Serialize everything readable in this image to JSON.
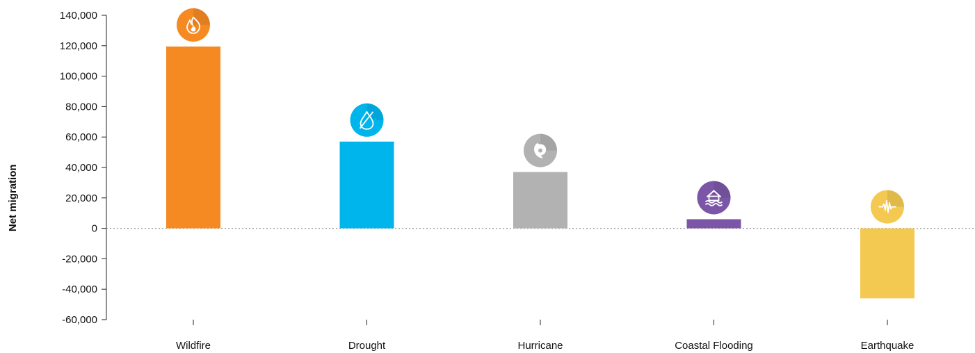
{
  "chart_data": {
    "type": "bar",
    "title": "",
    "xlabel": "",
    "ylabel": "Net migration",
    "ylim": [
      -60000,
      140000
    ],
    "yticks": [
      140000,
      120000,
      100000,
      80000,
      60000,
      40000,
      20000,
      0,
      -20000,
      -40000,
      -60000
    ],
    "ytick_labels": [
      "140,000",
      "120,000",
      "100,000",
      "80,000",
      "60,000",
      "40,000",
      "20,000",
      "0",
      "-20,000",
      "-40,000",
      "-60,000"
    ],
    "categories": [
      "Wildfire",
      "Drought",
      "Hurricane",
      "Coastal Flooding",
      "Earthquake"
    ],
    "values": [
      119500,
      57000,
      37000,
      6000,
      -46000
    ],
    "colors": [
      "#f58a23",
      "#00b4ec",
      "#b2b2b2",
      "#7b56a6",
      "#f4c952"
    ],
    "icons": [
      "fire-icon",
      "drought-water-icon",
      "hurricane-icon",
      "flood-house-icon",
      "earthquake-seismic-icon"
    ],
    "grid": false,
    "zero_line_style": "dotted",
    "legend": "none"
  }
}
